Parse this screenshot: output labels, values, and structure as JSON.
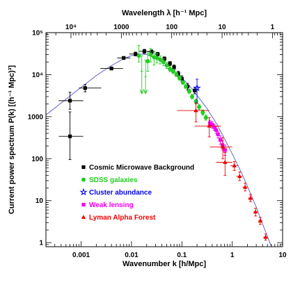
{
  "chart_data": {
    "type": "scatter",
    "title": "",
    "xlabel": "Wavenumber k [h/Mpc]",
    "ylabel": "Current power spectrum P(k) [(h⁻¹ Mpc)³]",
    "x2label": "Wavelength λ [h⁻¹ Mpc]",
    "xscale": "log",
    "yscale": "log",
    "xlim": [
      0.0002,
      10
    ],
    "ylim": [
      0.8,
      100000
    ],
    "grid": false,
    "legend_position": "bottom-left inside plot",
    "x_ticks": [
      {
        "value": 0.001,
        "label": "0.001"
      },
      {
        "value": 0.01,
        "label": "0.01"
      },
      {
        "value": 0.1,
        "label": "0.1"
      },
      {
        "value": 1,
        "label": "1"
      },
      {
        "value": 10,
        "label": "10"
      }
    ],
    "y_ticks": [
      {
        "value": 1,
        "label": "1"
      },
      {
        "value": 10,
        "label": "10"
      },
      {
        "value": 100,
        "label": "100"
      },
      {
        "value": 1000,
        "label": "1000"
      },
      {
        "value": 10000,
        "label": "10⁴"
      },
      {
        "value": 100000,
        "label": "10⁵"
      }
    ],
    "top_ticks": [
      {
        "value": 10000,
        "label": "10⁴"
      },
      {
        "value": 1000,
        "label": "1000"
      },
      {
        "value": 100,
        "label": "100"
      },
      {
        "value": 10,
        "label": "10"
      },
      {
        "value": 1,
        "label": "1"
      }
    ],
    "series": [
      {
        "name": "Cosmic Microwave Background",
        "color": "#000000",
        "marker": "square",
        "points": [
          {
            "x": 0.0006,
            "y": 340,
            "xerr": [
              0.00036,
              0.0011
            ],
            "yerr": [
              95,
              1300
            ]
          },
          {
            "x": 0.0006,
            "y": 2400,
            "xerr": [
              0.00036,
              0.0011
            ],
            "yerr": [
              1500,
              3800
            ]
          },
          {
            "x": 0.0012,
            "y": 4800,
            "xerr": [
              0.0009,
              0.0025
            ],
            "yerr": [
              3900,
              5800
            ]
          },
          {
            "x": 0.004,
            "y": 14000,
            "xerr": [
              0.0024,
              0.0068
            ],
            "yerr": [
              13000,
              15300
            ]
          },
          {
            "x": 0.007,
            "y": 25000,
            "xerr": [
              0.0052,
              0.0095
            ],
            "yerr": [
              23500,
              27000
            ]
          },
          {
            "x": 0.012,
            "y": 31000,
            "xerr": [
              0.009,
              0.014
            ],
            "yerr": [
              28000,
              34500
            ]
          },
          {
            "x": 0.018,
            "y": 36000,
            "xerr": [
              0.014,
              0.022
            ],
            "yerr": [
              32000,
              40000
            ]
          },
          {
            "x": 0.025,
            "y": 35000,
            "xerr": [
              0.021,
              0.029
            ],
            "yerr": [
              31000,
              39000
            ]
          },
          {
            "x": 0.033,
            "y": 31000,
            "xerr": [
              0.029,
              0.037
            ],
            "yerr": [
              28000,
              34000
            ]
          },
          {
            "x": 0.045,
            "y": 24000,
            "xerr": [
              0.041,
              0.049
            ],
            "yerr": [
              21500,
              26500
            ]
          },
          {
            "x": 0.058,
            "y": 18500,
            "xerr": [
              0.053,
              0.063
            ],
            "yerr": [
              16500,
              20500
            ]
          },
          {
            "x": 0.07,
            "y": 15000,
            "xerr": [
              0.065,
              0.075
            ],
            "yerr": [
              13000,
              17000
            ]
          },
          {
            "x": 0.085,
            "y": 10500,
            "xerr": [
              0.08,
              0.09
            ],
            "yerr": [
              9000,
              12000
            ]
          },
          {
            "x": 0.1,
            "y": 8000,
            "xerr": [
              0.095,
              0.105
            ],
            "yerr": [
              6800,
              9400
            ]
          },
          {
            "x": 0.13,
            "y": 5200,
            "xerr": [
              0.12,
              0.14
            ],
            "yerr": [
              4300,
              6200
            ]
          },
          {
            "x": 0.18,
            "y": 4200,
            "xerr": [
              0.17,
              0.19
            ],
            "yerr": [
              3500,
              5000
            ]
          }
        ]
      },
      {
        "name": "SDSS galaxies",
        "color": "#22cc22",
        "marker": "circle",
        "points": [
          {
            "x": 0.014,
            "y": 28000,
            "xerr": [
              0.013,
              0.015
            ],
            "yerr": [
              20000,
              50000
            ]
          },
          {
            "x": 0.016,
            "y": 12000,
            "xerr": [
              0.015,
              0.017
            ],
            "yerr": [
              3800,
              28000
            ],
            "upper_limit": true
          },
          {
            "x": 0.019,
            "y": 9000,
            "xerr": [
              0.018,
              0.02
            ],
            "yerr": [
              3800,
              22000
            ],
            "upper_limit": true
          },
          {
            "x": 0.021,
            "y": 21000,
            "xerr": [
              0.02,
              0.022
            ],
            "yerr": [
              12000,
              33000
            ]
          },
          {
            "x": 0.024,
            "y": 30000,
            "xerr": [
              0.023,
              0.025
            ],
            "yerr": [
              20000,
              42000
            ]
          },
          {
            "x": 0.028,
            "y": 26000,
            "xerr": [
              0.027,
              0.029
            ],
            "yerr": [
              17000,
              36000
            ]
          },
          {
            "x": 0.032,
            "y": 25000,
            "xerr": [
              0.031,
              0.033
            ],
            "yerr": [
              19000,
              32000
            ]
          },
          {
            "x": 0.037,
            "y": 23000,
            "xerr": [
              0.036,
              0.038
            ],
            "yerr": [
              18000,
              28000
            ]
          },
          {
            "x": 0.043,
            "y": 20000,
            "xerr": [
              0.042,
              0.044
            ],
            "yerr": [
              16500,
              24000
            ]
          },
          {
            "x": 0.05,
            "y": 16500,
            "xerr": [
              0.049,
              0.051
            ],
            "yerr": [
              14000,
              19500
            ]
          },
          {
            "x": 0.058,
            "y": 13500,
            "xerr": [
              0.057,
              0.059
            ],
            "yerr": [
              11800,
              15500
            ]
          },
          {
            "x": 0.067,
            "y": 12000,
            "xerr": [
              0.066,
              0.068
            ],
            "yerr": [
              10600,
              13600
            ]
          },
          {
            "x": 0.078,
            "y": 10000,
            "xerr": [
              0.077,
              0.079
            ],
            "yerr": [
              9000,
              11200
            ]
          },
          {
            "x": 0.09,
            "y": 8200,
            "xerr": [
              0.089,
              0.091
            ],
            "yerr": [
              7400,
              9100
            ]
          },
          {
            "x": 0.105,
            "y": 6500,
            "xerr": [
              0.103,
              0.107
            ],
            "yerr": [
              5900,
              7200
            ]
          },
          {
            "x": 0.12,
            "y": 5200,
            "xerr": [
              0.118,
              0.122
            ],
            "yerr": [
              4700,
              5800
            ]
          },
          {
            "x": 0.14,
            "y": 4000,
            "xerr": [
              0.137,
              0.143
            ],
            "yerr": [
              3600,
              4500
            ]
          },
          {
            "x": 0.16,
            "y": 3000,
            "xerr": [
              0.156,
              0.164
            ],
            "yerr": [
              2650,
              3400
            ]
          },
          {
            "x": 0.19,
            "y": 2300,
            "xerr": [
              0.185,
              0.195
            ],
            "yerr": [
              2000,
              2650
            ]
          },
          {
            "x": 0.22,
            "y": 1700,
            "xerr": [
              0.214,
              0.226
            ],
            "yerr": [
              1480,
              1960
            ]
          },
          {
            "x": 0.26,
            "y": 1250,
            "xerr": [
              0.252,
              0.268
            ],
            "yerr": [
              1080,
              1450
            ]
          },
          {
            "x": 0.3,
            "y": 950,
            "xerr": [
              0.29,
              0.31
            ],
            "yerr": [
              820,
              1100
            ]
          }
        ]
      },
      {
        "name": "Cluster abundance",
        "color": "#0000ee",
        "marker": "star",
        "points": [
          {
            "x": 0.2,
            "y": 4800,
            "xerr": [
              0.2,
              0.2
            ],
            "yerr": [
              2100,
              7800
            ]
          }
        ]
      },
      {
        "name": "Weak lensing",
        "color": "#ee00ee",
        "marker": "square",
        "points": [
          {
            "x": 0.36,
            "y": 700,
            "xerr": [
              0.34,
              0.38
            ],
            "yerr": [
              600,
              820
            ]
          },
          {
            "x": 0.4,
            "y": 640,
            "xerr": [
              0.38,
              0.42
            ],
            "yerr": [
              540,
              760
            ]
          },
          {
            "x": 0.44,
            "y": 560,
            "xerr": [
              0.42,
              0.46
            ],
            "yerr": [
              470,
              660
            ]
          },
          {
            "x": 0.48,
            "y": 480,
            "xerr": [
              0.46,
              0.5
            ],
            "yerr": [
              400,
              580
            ]
          },
          {
            "x": 0.52,
            "y": 380,
            "xerr": [
              0.5,
              0.55
            ],
            "yerr": [
              310,
              460
            ]
          },
          {
            "x": 0.58,
            "y": 280,
            "xerr": [
              0.55,
              0.61
            ],
            "yerr": [
              220,
              350
            ]
          },
          {
            "x": 0.64,
            "y": 210,
            "xerr": [
              0.61,
              0.68
            ],
            "yerr": [
              160,
              270
            ]
          },
          {
            "x": 0.72,
            "y": 160,
            "xerr": [
              0.68,
              0.76
            ],
            "yerr": [
              120,
              210
            ]
          }
        ]
      },
      {
        "name": "Lyman Alpha Forest",
        "color": "#ee0000",
        "marker": "triangle",
        "points": [
          {
            "x": 0.19,
            "y": 1400,
            "xerr": [
              0.08,
              0.35
            ],
            "yerr": [
              750,
              2100
            ]
          },
          {
            "x": 0.35,
            "y": 600,
            "xerr": [
              0.18,
              0.6
            ],
            "yerr": [
              330,
              950
            ]
          },
          {
            "x": 0.65,
            "y": 190,
            "xerr": [
              0.36,
              1.0
            ],
            "yerr": [
              100,
              320
            ]
          },
          {
            "x": 0.72,
            "y": 82,
            "xerr": [
              0.48,
              1.0
            ],
            "yerr": [
              40,
              140
            ]
          },
          {
            "x": 1.1,
            "y": 68,
            "xerr": [
              0.92,
              1.3
            ],
            "yerr": [
              52,
              85
            ]
          },
          {
            "x": 1.4,
            "y": 38,
            "xerr": [
              1.2,
              1.6
            ],
            "yerr": [
              30,
              48
            ]
          },
          {
            "x": 1.8,
            "y": 21,
            "xerr": [
              1.6,
              2.0
            ],
            "yerr": [
              17,
              26
            ]
          },
          {
            "x": 2.3,
            "y": 11.5,
            "xerr": [
              2.05,
              2.55
            ],
            "yerr": [
              9.5,
              14
            ]
          },
          {
            "x": 2.9,
            "y": 5.4,
            "xerr": [
              2.6,
              3.3
            ],
            "yerr": [
              4.3,
              6.6
            ]
          },
          {
            "x": 3.6,
            "y": 3.3,
            "xerr": [
              3.3,
              4.0
            ],
            "yerr": [
              2.7,
              4.0
            ]
          },
          {
            "x": 4.6,
            "y": 1.35,
            "xerr": [
              4.1,
              5.1
            ],
            "yerr": [
              1.15,
              1.6
            ]
          }
        ]
      }
    ],
    "model_curve": {
      "color": "#5555cc",
      "points": [
        [
          0.0002,
          1100
        ],
        [
          0.0005,
          2600
        ],
        [
          0.001,
          5000
        ],
        [
          0.002,
          9500
        ],
        [
          0.004,
          16500
        ],
        [
          0.007,
          24000
        ],
        [
          0.01,
          28500
        ],
        [
          0.015,
          31000
        ],
        [
          0.02,
          30000
        ],
        [
          0.03,
          25000
        ],
        [
          0.05,
          17000
        ],
        [
          0.07,
          12500
        ],
        [
          0.1,
          8500
        ],
        [
          0.15,
          5000
        ],
        [
          0.2,
          3200
        ],
        [
          0.3,
          1700
        ],
        [
          0.5,
          650
        ],
        [
          0.7,
          300
        ],
        [
          1,
          130
        ],
        [
          1.5,
          48
        ],
        [
          2,
          22
        ],
        [
          3,
          7
        ],
        [
          4,
          2.8
        ],
        [
          5,
          1.4
        ],
        [
          7,
          0.5
        ]
      ]
    }
  }
}
